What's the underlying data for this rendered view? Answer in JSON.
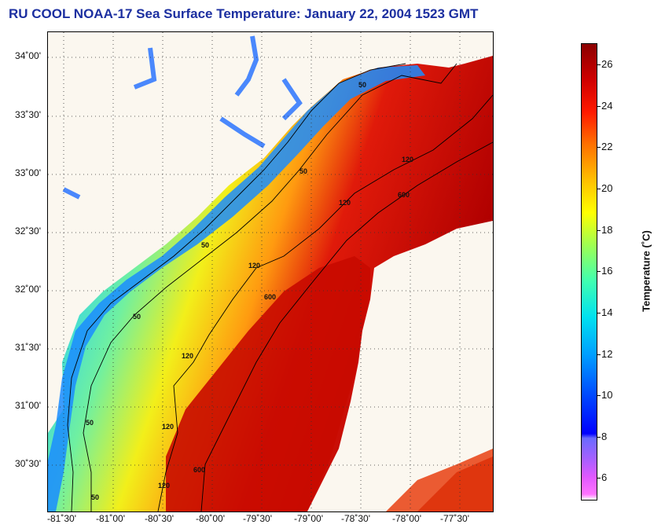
{
  "title": "RU COOL  NOAA-17  Sea Surface Temperature:  January 22, 2004 1523 GMT",
  "map": {
    "lat_labels": [
      "34˚00'",
      "33˚30'",
      "33˚00'",
      "32˚30'",
      "32˚00'",
      "31˚30'",
      "31˚00'",
      "30˚30'"
    ],
    "lon_labels": [
      "-81˚30'",
      "-81˚00'",
      "-80˚30'",
      "-80˚00'",
      "-79˚30'",
      "-79˚00'",
      "-78˚30'",
      "-78˚00'",
      "-77˚30'"
    ],
    "contour_labels": [
      "50",
      "50",
      "50",
      "50",
      "50",
      "50",
      "120",
      "120",
      "120",
      "120",
      "120",
      "120",
      "600",
      "600",
      "600"
    ],
    "land_color": "#fbf7ef",
    "grid": true
  },
  "colorbar": {
    "title": "Temperature (˚C)",
    "tick_labels": [
      "26",
      "24",
      "22",
      "20",
      "18",
      "16",
      "14",
      "12",
      "10",
      "8",
      "6"
    ],
    "range": [
      5,
      27
    ]
  }
}
